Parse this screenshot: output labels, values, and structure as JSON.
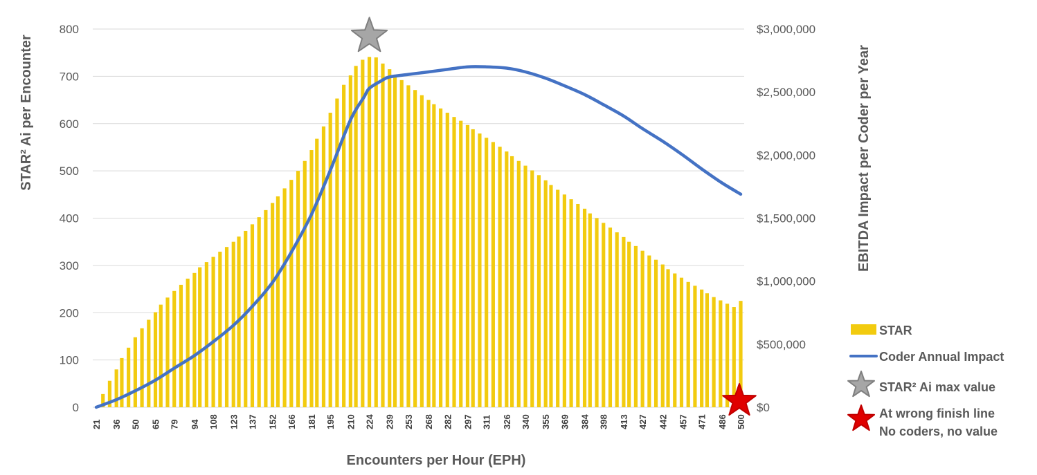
{
  "chart_data": {
    "type": "bar+line",
    "title": "",
    "xlabel": "Encounters per Hour (EPH)",
    "ylabel": "STAR² Ai per Encounter",
    "y2label": "EBITDA Impact per Coder per Year",
    "ylim": [
      0,
      800
    ],
    "y2lim": [
      0,
      3000000
    ],
    "yticks": [
      "0",
      "100",
      "200",
      "300",
      "400",
      "500",
      "600",
      "700",
      "800"
    ],
    "y2ticks": [
      "$0",
      "$500,000",
      "$1,000,000",
      "$1,500,000",
      "$2,000,000",
      "$2,500,000",
      "$3,000,000"
    ],
    "x_tick_labels": [
      "21",
      "36",
      "50",
      "65",
      "79",
      "94",
      "108",
      "123",
      "137",
      "152",
      "166",
      "181",
      "195",
      "210",
      "224",
      "239",
      "253",
      "268",
      "282",
      "297",
      "311",
      "326",
      "340",
      "355",
      "369",
      "384",
      "398",
      "413",
      "427",
      "442",
      "457",
      "471",
      "486",
      "500"
    ],
    "grid": true,
    "legend_position": "right",
    "series": [
      {
        "name": "STAR",
        "type": "bar",
        "color": "#F2CB0F",
        "x": [
          21,
          26,
          31,
          36,
          40,
          45,
          50,
          55,
          60,
          65,
          69,
          74,
          79,
          84,
          89,
          94,
          98,
          103,
          108,
          113,
          118,
          123,
          127,
          132,
          137,
          142,
          147,
          152,
          156,
          161,
          166,
          171,
          176,
          181,
          185,
          190,
          195,
          200,
          205,
          210,
          214,
          219,
          224,
          229,
          234,
          239,
          243,
          248,
          253,
          258,
          263,
          268,
          272,
          277,
          282,
          287,
          292,
          297,
          301,
          306,
          311,
          316,
          321,
          326,
          330,
          335,
          340,
          345,
          350,
          355,
          359,
          364,
          369,
          374,
          379,
          384,
          388,
          393,
          398,
          403,
          408,
          413,
          417,
          422,
          427,
          432,
          437,
          442,
          446,
          451,
          456,
          461,
          466,
          471,
          475,
          480,
          485,
          490,
          495,
          500
        ],
        "values": [
          0,
          28,
          56,
          80,
          104,
          126,
          148,
          167,
          185,
          201,
          217,
          232,
          246,
          259,
          272,
          284,
          296,
          307,
          318,
          329,
          339,
          350,
          361,
          373,
          387,
          402,
          417,
          432,
          446,
          463,
          481,
          500,
          521,
          544,
          568,
          594,
          623,
          653,
          682,
          702,
          722,
          735,
          741,
          740,
          727,
          715,
          702,
          692,
          681,
          671,
          660,
          650,
          641,
          632,
          623,
          614,
          606,
          597,
          588,
          579,
          570,
          561,
          551,
          541,
          531,
          521,
          511,
          501,
          491,
          480,
          470,
          460,
          450,
          440,
          430,
          420,
          410,
          400,
          390,
          380,
          370,
          360,
          350,
          341,
          331,
          321,
          312,
          302,
          292,
          283,
          274,
          265,
          257,
          249,
          241,
          233,
          226,
          219,
          212,
          225
        ]
      },
      {
        "name": "Coder Annual Impact",
        "type": "line",
        "axis": "y2",
        "color": "#4472C4",
        "x": [
          21,
          36,
          50,
          65,
          79,
          94,
          108,
          123,
          137,
          152,
          166,
          181,
          195,
          210,
          220,
          224,
          233,
          239,
          253,
          268,
          282,
          297,
          311,
          326,
          340,
          355,
          369,
          384,
          398,
          413,
          427,
          442,
          457,
          471,
          486,
          500
        ],
        "values": [
          0,
          60000,
          130000,
          215000,
          310000,
          410000,
          520000,
          650000,
          800000,
          990000,
          1230000,
          1530000,
          1880000,
          2280000,
          2460000,
          2530000,
          2590000,
          2620000,
          2640000,
          2660000,
          2680000,
          2700000,
          2700000,
          2690000,
          2660000,
          2610000,
          2550000,
          2480000,
          2400000,
          2310000,
          2210000,
          2110000,
          2000000,
          1890000,
          1780000,
          1690000
        ]
      }
    ],
    "markers": [
      {
        "name": "STAR² Ai max value",
        "shape": "star",
        "color": "#A6A6A6",
        "x": 224,
        "y": 741
      },
      {
        "name": "At wrong finish line / No coders, no value",
        "shape": "star",
        "color": "#E00000",
        "x": 500,
        "y": 0
      }
    ],
    "legend": [
      {
        "label": "STAR",
        "kind": "bar",
        "color": "#F2CB0F"
      },
      {
        "label": "Coder Annual Impact",
        "kind": "line",
        "color": "#4472C4"
      },
      {
        "label": "STAR² Ai max value",
        "kind": "star",
        "color": "#A6A6A6"
      },
      {
        "label_lines": [
          "At wrong finish line",
          "No coders, no value"
        ],
        "kind": "star",
        "color": "#E00000"
      }
    ]
  }
}
